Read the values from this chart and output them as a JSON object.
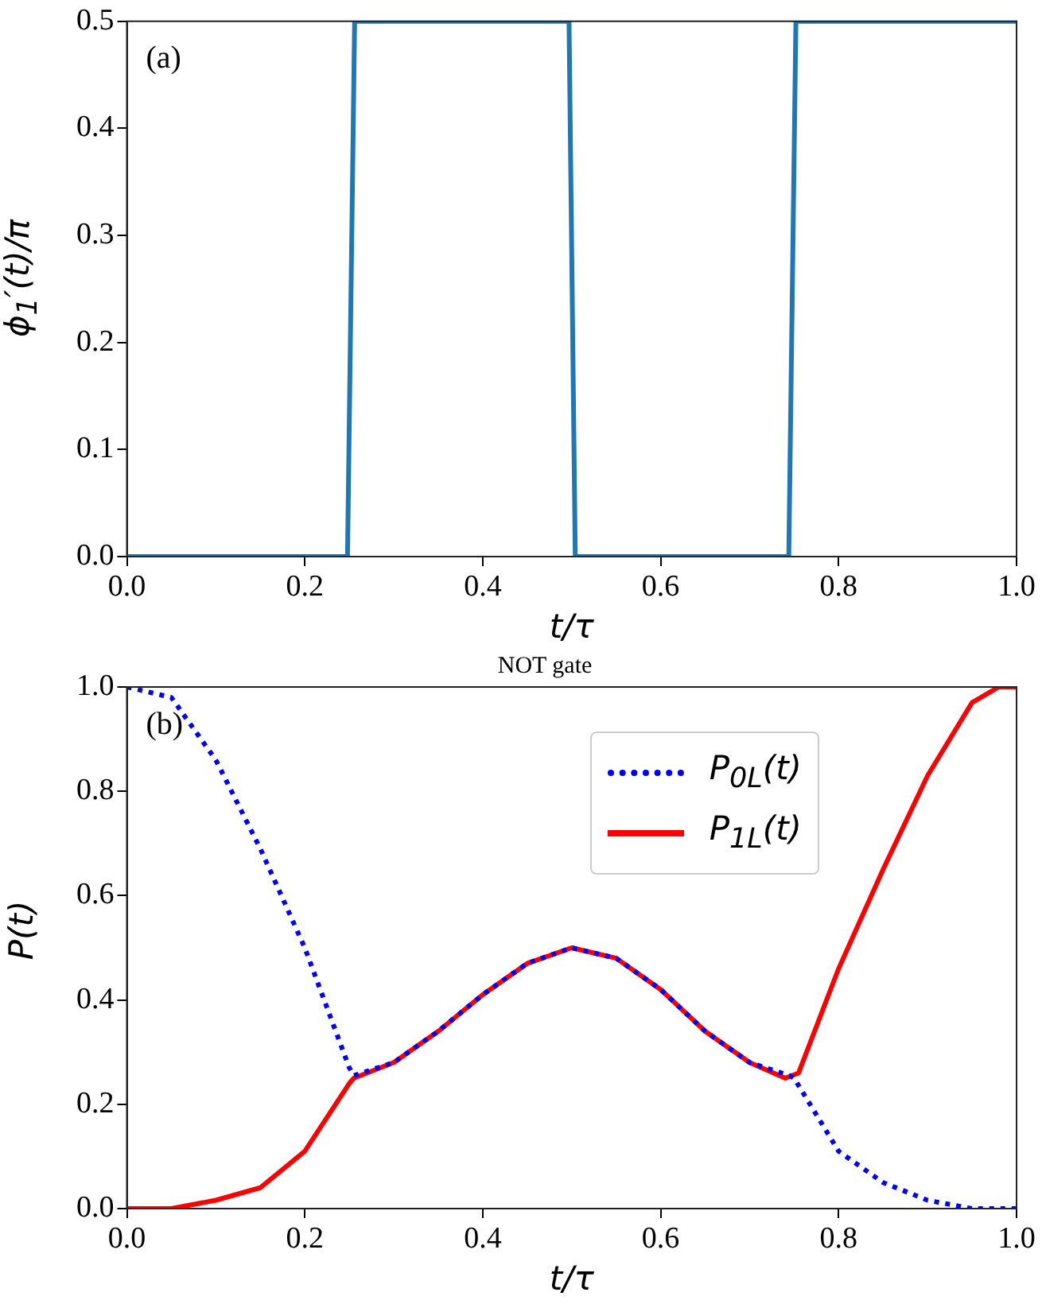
{
  "chart_data": [
    {
      "type": "line",
      "ylabel": "ϕ$_{1}$′(t)/π",
      "xlabel": "t/τ",
      "annotations": [
        "(a)"
      ],
      "xlim": [
        0,
        1
      ],
      "ylim": [
        0,
        0.5
      ],
      "xticks": [
        {
          "value": 0,
          "label": "0.0"
        },
        {
          "value": 0.2,
          "label": "0.2"
        },
        {
          "value": 0.4,
          "label": "0.4"
        },
        {
          "value": 0.6,
          "label": "0.6"
        },
        {
          "value": 0.8,
          "label": "0.8"
        },
        {
          "value": 1,
          "label": "1.0"
        }
      ],
      "yticks": [
        {
          "value": 0,
          "label": "0.0"
        },
        {
          "value": 0.1,
          "label": "0.1"
        },
        {
          "value": 0.2,
          "label": "0.2"
        },
        {
          "value": 0.3,
          "label": "0.3"
        },
        {
          "value": 0.4,
          "label": "0.4"
        },
        {
          "value": 0.5,
          "label": "0.5"
        }
      ],
      "grid": false,
      "legend": false,
      "marker": "none",
      "series": [
        {
          "color": "#1f77b4",
          "line_style": "solid",
          "x": [
            0,
            0.248,
            0.256,
            0.497,
            0.504,
            0.744,
            0.752,
            1
          ],
          "values": [
            0,
            0,
            0.5,
            0.5,
            0,
            0,
            0.5,
            0.5
          ]
        }
      ]
    },
    {
      "type": "line",
      "title": "NOT gate",
      "ylabel": "P(t)",
      "xlabel": "t/τ",
      "annotations": [
        "(b)"
      ],
      "xlim": [
        0,
        1
      ],
      "ylim": [
        0,
        1
      ],
      "xticks": [
        {
          "value": 0,
          "label": "0.0"
        },
        {
          "value": 0.2,
          "label": "0.2"
        },
        {
          "value": 0.4,
          "label": "0.4"
        },
        {
          "value": 0.6,
          "label": "0.6"
        },
        {
          "value": 0.8,
          "label": "0.8"
        },
        {
          "value": 1,
          "label": "1.0"
        }
      ],
      "yticks": [
        {
          "value": 0,
          "label": "0.0"
        },
        {
          "value": 0.2,
          "label": "0.2"
        },
        {
          "value": 0.4,
          "label": "0.4"
        },
        {
          "value": 0.6,
          "label": "0.6"
        },
        {
          "value": 0.8,
          "label": "0.8"
        },
        {
          "value": 1,
          "label": "1.0"
        }
      ],
      "grid": false,
      "legend": "top right",
      "marker": "none",
      "series": [
        {
          "name": "P$_{0L}$(t)",
          "color": "#0000ff",
          "line_style": "dotted",
          "x": [
            0,
            0.05,
            0.1,
            0.15,
            0.2,
            0.25,
            0.255,
            0.3,
            0.35,
            0.4,
            0.45,
            0.5,
            0.55,
            0.6,
            0.65,
            0.7,
            0.745,
            0.75,
            0.8,
            0.85,
            0.9,
            0.95,
            1
          ],
          "values": [
            1,
            0.98,
            0.86,
            0.69,
            0.5,
            0.27,
            0.255,
            0.28,
            0.34,
            0.41,
            0.47,
            0.5,
            0.48,
            0.42,
            0.34,
            0.28,
            0.255,
            0.25,
            0.11,
            0.05,
            0.016,
            0,
            0
          ]
        },
        {
          "name": "P$_{1L}$(t)",
          "color": "#ff0000",
          "line_style": "solid",
          "x": [
            0,
            0.05,
            0.1,
            0.15,
            0.2,
            0.25,
            0.255,
            0.3,
            0.35,
            0.4,
            0.45,
            0.5,
            0.55,
            0.6,
            0.65,
            0.7,
            0.74,
            0.755,
            0.8,
            0.85,
            0.9,
            0.95,
            0.98,
            1
          ],
          "values": [
            0,
            0,
            0.016,
            0.04,
            0.11,
            0.24,
            0.25,
            0.28,
            0.34,
            0.41,
            0.47,
            0.5,
            0.48,
            0.42,
            0.34,
            0.28,
            0.25,
            0.26,
            0.46,
            0.65,
            0.83,
            0.97,
            1,
            1
          ]
        }
      ]
    }
  ]
}
